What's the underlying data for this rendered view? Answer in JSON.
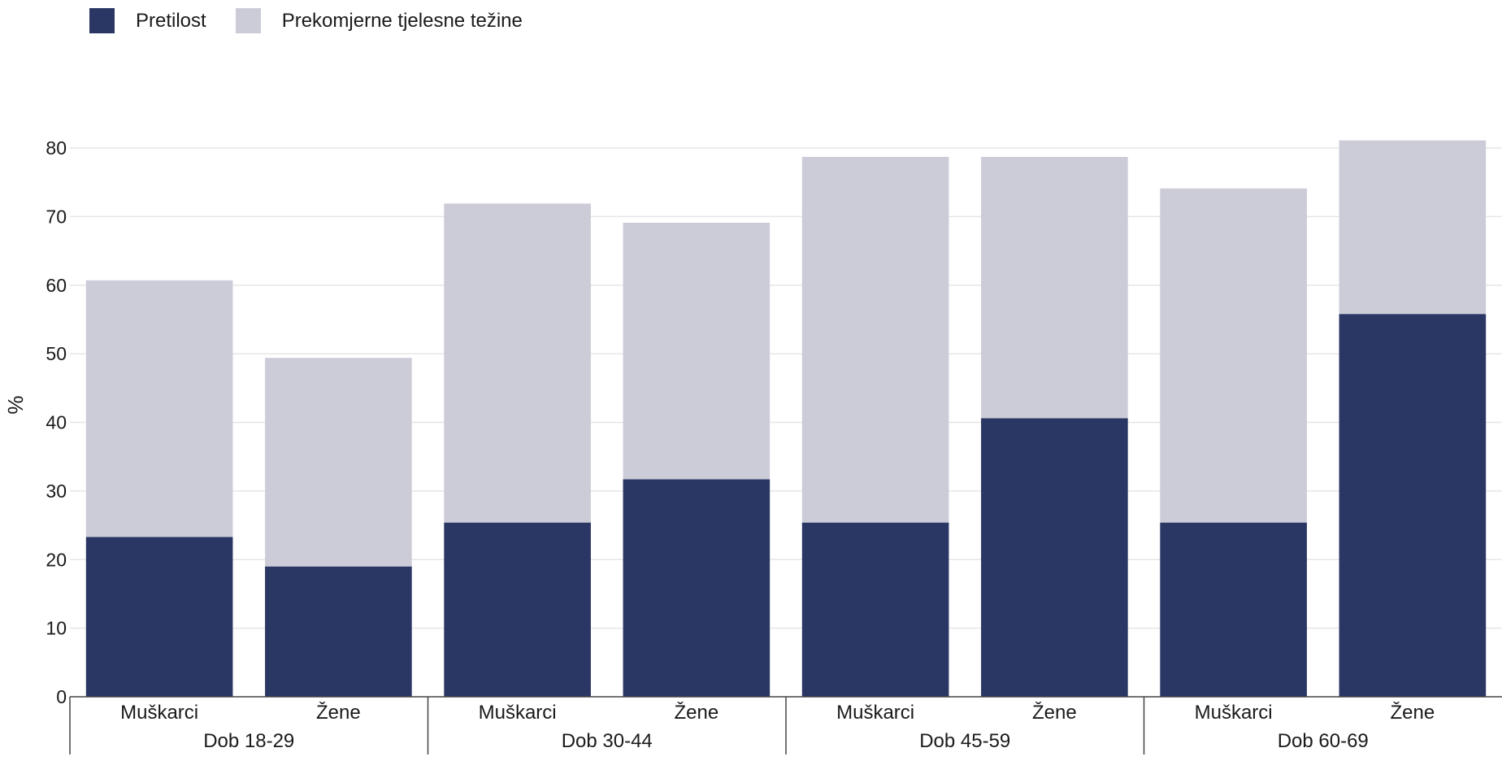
{
  "legend": [
    {
      "label": "Pretilost",
      "color": "#2a3664"
    },
    {
      "label": "Prekomjerne tjelesne težine",
      "color": "#cbccd8"
    }
  ],
  "chart_data": {
    "type": "bar",
    "stacked": true,
    "ylabel": "%",
    "ylim": [
      0,
      80
    ],
    "yticks": [
      0,
      10,
      20,
      30,
      40,
      50,
      60,
      70,
      80
    ],
    "grid": true,
    "legend_position": "top-left",
    "categories": [
      "Muškarci",
      "Žene",
      "Muškarci",
      "Žene",
      "Muškarci",
      "Žene",
      "Muškarci",
      "Žene"
    ],
    "groups": [
      {
        "label": "Dob 18-29",
        "span": 2
      },
      {
        "label": "Dob 30-44",
        "span": 2
      },
      {
        "label": "Dob 45-59",
        "span": 2
      },
      {
        "label": "Dob 60-69",
        "span": 2
      }
    ],
    "series": [
      {
        "name": "Pretilost",
        "color": "#2a3664",
        "values": [
          23.3,
          19.0,
          25.4,
          31.7,
          25.4,
          40.6,
          25.4,
          55.8
        ]
      },
      {
        "name": "Prekomjerne tjelesne težine",
        "color": "#cbccd8",
        "values": [
          37.4,
          30.4,
          46.5,
          37.4,
          53.3,
          38.1,
          48.7,
          25.3
        ]
      }
    ]
  }
}
